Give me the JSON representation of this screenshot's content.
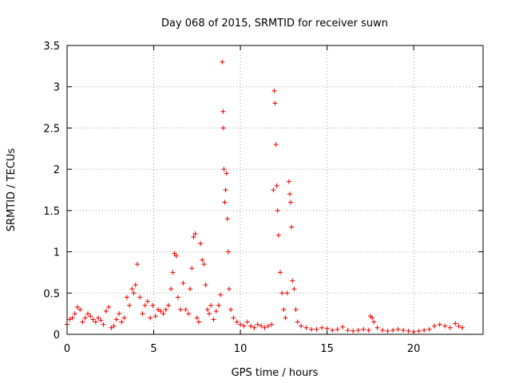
{
  "chart_data": {
    "type": "scatter",
    "title": "Day 068 of 2015, SRMTID for receiver suwn",
    "xlabel": "GPS time / hours",
    "ylabel": "SRMTID / TECUs",
    "xlim": [
      0,
      24
    ],
    "ylim": [
      0,
      3.5
    ],
    "xticks": [
      0,
      5,
      10,
      15,
      20
    ],
    "yticks": [
      0,
      0.5,
      1,
      1.5,
      2,
      2.5,
      3,
      3.5
    ],
    "xtick_labels": [
      "0",
      "5",
      "10",
      "15",
      "20"
    ],
    "ytick_labels": [
      "0",
      "0.5",
      "1",
      "1.5",
      "2",
      "2.5",
      "3",
      "3.5"
    ],
    "grid": true,
    "marker": "+",
    "color": "#ee0000",
    "series": [
      {
        "name": "SRMTID",
        "x": [
          0.0,
          0.15,
          0.3,
          0.45,
          0.6,
          0.75,
          0.9,
          1.05,
          1.2,
          1.35,
          1.5,
          1.65,
          1.8,
          1.95,
          2.1,
          2.25,
          2.4,
          2.55,
          2.7,
          2.85,
          3.0,
          3.15,
          3.3,
          3.45,
          3.6,
          3.75,
          3.85,
          3.95,
          4.05,
          4.2,
          4.35,
          4.5,
          4.65,
          4.8,
          4.95,
          5.1,
          5.25,
          5.4,
          5.55,
          5.7,
          5.85,
          6.0,
          6.1,
          6.2,
          6.3,
          6.4,
          6.55,
          6.7,
          6.85,
          7.0,
          7.1,
          7.2,
          7.3,
          7.4,
          7.5,
          7.6,
          7.7,
          7.8,
          7.9,
          8.0,
          8.1,
          8.2,
          8.3,
          8.45,
          8.6,
          8.75,
          8.85,
          8.95,
          9.0,
          9.02,
          9.05,
          9.1,
          9.15,
          9.2,
          9.25,
          9.3,
          9.35,
          9.45,
          9.6,
          9.8,
          10.0,
          10.2,
          10.4,
          10.6,
          10.8,
          11.0,
          11.2,
          11.4,
          11.6,
          11.8,
          11.9,
          11.95,
          12.0,
          12.05,
          12.1,
          12.15,
          12.2,
          12.3,
          12.4,
          12.5,
          12.6,
          12.7,
          12.8,
          12.85,
          12.9,
          12.95,
          13.0,
          13.1,
          13.2,
          13.3,
          13.5,
          13.8,
          14.1,
          14.4,
          14.7,
          15.0,
          15.3,
          15.6,
          15.9,
          16.2,
          16.5,
          16.8,
          17.1,
          17.4,
          17.5,
          17.6,
          17.7,
          17.9,
          18.2,
          18.5,
          18.8,
          19.1,
          19.4,
          19.7,
          20.0,
          20.3,
          20.6,
          20.9,
          21.2,
          21.5,
          21.8,
          22.1,
          22.4,
          22.6,
          22.8
        ],
        "y": [
          0.12,
          0.18,
          0.2,
          0.25,
          0.33,
          0.3,
          0.15,
          0.2,
          0.25,
          0.22,
          0.18,
          0.15,
          0.2,
          0.17,
          0.12,
          0.28,
          0.33,
          0.08,
          0.1,
          0.18,
          0.25,
          0.15,
          0.2,
          0.45,
          0.35,
          0.55,
          0.5,
          0.6,
          0.85,
          0.45,
          0.25,
          0.35,
          0.4,
          0.2,
          0.35,
          0.22,
          0.3,
          0.28,
          0.25,
          0.3,
          0.35,
          0.55,
          0.75,
          0.98,
          0.95,
          0.45,
          0.3,
          0.62,
          0.3,
          0.25,
          0.55,
          0.8,
          1.18,
          1.22,
          0.2,
          0.15,
          1.1,
          0.9,
          0.85,
          0.6,
          0.3,
          0.25,
          0.35,
          0.18,
          0.28,
          0.35,
          0.48,
          3.3,
          2.7,
          2.5,
          2.0,
          1.6,
          1.75,
          1.95,
          1.4,
          1.0,
          0.55,
          0.3,
          0.2,
          0.15,
          0.12,
          0.1,
          0.15,
          0.1,
          0.08,
          0.12,
          0.1,
          0.08,
          0.1,
          0.12,
          1.75,
          2.95,
          2.8,
          2.3,
          1.8,
          1.5,
          1.2,
          0.75,
          0.5,
          0.3,
          0.2,
          0.5,
          1.85,
          1.7,
          1.6,
          1.3,
          0.65,
          0.55,
          0.3,
          0.15,
          0.1,
          0.08,
          0.06,
          0.06,
          0.08,
          0.07,
          0.05,
          0.06,
          0.09,
          0.05,
          0.04,
          0.05,
          0.06,
          0.05,
          0.22,
          0.2,
          0.15,
          0.08,
          0.05,
          0.04,
          0.05,
          0.06,
          0.05,
          0.04,
          0.03,
          0.04,
          0.05,
          0.06,
          0.1,
          0.12,
          0.1,
          0.08,
          0.13,
          0.1,
          0.08
        ]
      }
    ]
  }
}
